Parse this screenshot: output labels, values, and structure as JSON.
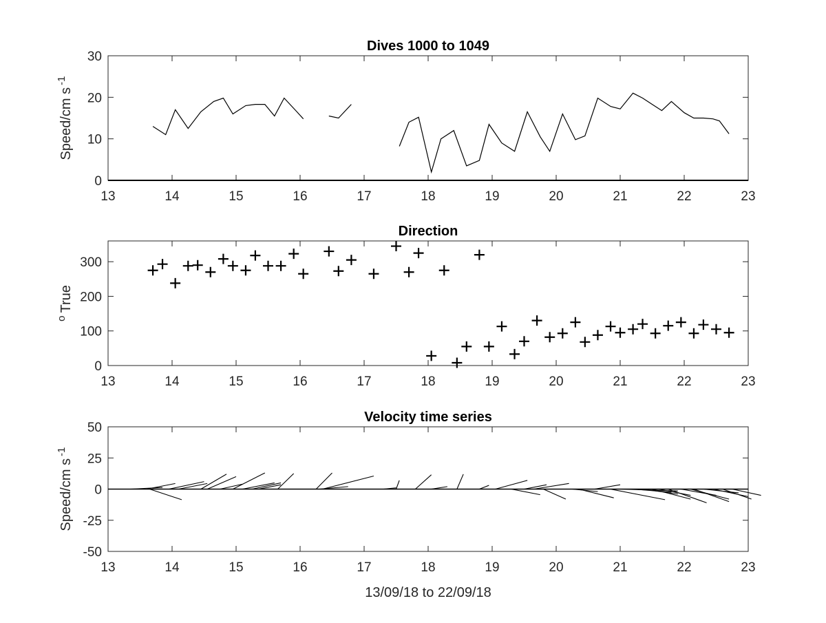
{
  "figure": {
    "background": "#ffffff",
    "axis_color": "#262626",
    "data_color": "#000000"
  },
  "chart_data": [
    {
      "type": "line",
      "title": "Dives 1000 to 1049",
      "xlabel": "",
      "ylabel": "Speed/cm s",
      "ylabel_sup": "-1",
      "xlim": [
        13,
        23
      ],
      "ylim": [
        0,
        30
      ],
      "xticks": [
        13,
        14,
        15,
        16,
        17,
        18,
        19,
        20,
        21,
        22,
        23
      ],
      "yticks": [
        0,
        10,
        20,
        30
      ],
      "grid": false,
      "series": [
        {
          "segments": [
            [
              [
                13.7,
                13
              ],
              [
                13.9,
                11
              ],
              [
                14.05,
                17
              ],
              [
                14.25,
                12.5
              ],
              [
                14.45,
                16.5
              ],
              [
                14.65,
                19
              ],
              [
                14.8,
                19.8
              ],
              [
                14.95,
                16
              ],
              [
                15.15,
                18
              ],
              [
                15.3,
                18.3
              ],
              [
                15.45,
                18.3
              ],
              [
                15.6,
                15.5
              ],
              [
                15.75,
                19.8
              ],
              [
                15.95,
                16.5
              ],
              [
                16.05,
                14.8
              ]
            ],
            [
              [
                16.45,
                15.5
              ],
              [
                16.6,
                15
              ],
              [
                16.8,
                18.3
              ]
            ],
            [
              [
                17.55,
                8.2
              ],
              [
                17.7,
                14
              ],
              [
                17.85,
                15.2
              ],
              [
                18.05,
                2
              ],
              [
                18.2,
                10
              ],
              [
                18.4,
                12
              ],
              [
                18.6,
                3.5
              ],
              [
                18.8,
                4.8
              ],
              [
                18.95,
                13.5
              ],
              [
                19.15,
                9
              ],
              [
                19.35,
                7
              ],
              [
                19.55,
                16.5
              ],
              [
                19.75,
                10.5
              ],
              [
                19.9,
                7
              ],
              [
                20.1,
                16
              ],
              [
                20.3,
                9.8
              ],
              [
                20.45,
                10.7
              ],
              [
                20.65,
                19.8
              ],
              [
                20.85,
                17.8
              ],
              [
                21.0,
                17.2
              ],
              [
                21.2,
                21
              ],
              [
                21.35,
                19.8
              ],
              [
                21.5,
                18.3
              ],
              [
                21.65,
                16.8
              ],
              [
                21.8,
                19
              ],
              [
                22.0,
                16.3
              ],
              [
                22.15,
                15
              ],
              [
                22.3,
                15
              ],
              [
                22.45,
                14.8
              ],
              [
                22.55,
                14.3
              ],
              [
                22.7,
                11.2
              ]
            ]
          ]
        }
      ]
    },
    {
      "type": "scatter",
      "title": "Direction",
      "xlabel": "",
      "ylabel": "True",
      "ylabel_sup": "o",
      "xlim": [
        13,
        23
      ],
      "ylim": [
        0,
        360
      ],
      "xticks": [
        13,
        14,
        15,
        16,
        17,
        18,
        19,
        20,
        21,
        22,
        23
      ],
      "yticks": [
        0,
        100,
        200,
        300
      ],
      "grid": false,
      "marker": "+",
      "x": [
        13.7,
        13.85,
        14.05,
        14.25,
        14.4,
        14.6,
        14.8,
        14.95,
        15.15,
        15.3,
        15.5,
        15.7,
        15.9,
        16.05,
        16.45,
        16.6,
        16.8,
        17.15,
        17.5,
        17.7,
        17.85,
        18.05,
        18.25,
        18.45,
        18.6,
        18.8,
        18.95,
        19.15,
        19.35,
        19.5,
        19.7,
        19.9,
        20.1,
        20.3,
        20.45,
        20.65,
        20.85,
        21.0,
        21.2,
        21.35,
        21.55,
        21.75,
        21.95,
        22.15,
        22.3,
        22.5,
        22.7
      ],
      "y": [
        275,
        293,
        238,
        288,
        290,
        270,
        308,
        288,
        275,
        318,
        288,
        288,
        323,
        265,
        330,
        273,
        305,
        265,
        345,
        270,
        325,
        28,
        275,
        8,
        55,
        320,
        55,
        113,
        33,
        70,
        130,
        82,
        93,
        125,
        68,
        88,
        113,
        95,
        105,
        120,
        93,
        115,
        125,
        93,
        118,
        105,
        95
      ]
    },
    {
      "type": "line",
      "title": "Velocity time series",
      "xlabel": "13/09/18 to 22/09/18",
      "ylabel": "Speed/cm s",
      "ylabel_sup": "-1",
      "xlim": [
        13,
        23
      ],
      "ylim": [
        -50,
        50
      ],
      "xticks": [
        13,
        14,
        15,
        16,
        17,
        18,
        19,
        20,
        21,
        22,
        23
      ],
      "yticks": [
        -50,
        -25,
        0,
        25,
        50
      ],
      "grid": false,
      "baseline_y": 0,
      "stick_vectors": [
        {
          "x": 13.35,
          "dx": 0.5,
          "dy": 1.3
        },
        {
          "x": 13.6,
          "dx": 0.45,
          "dy": 4.5
        },
        {
          "x": 13.65,
          "dx": 0.5,
          "dy": -8.5
        },
        {
          "x": 13.8,
          "dx": 0.5,
          "dy": 0
        },
        {
          "x": 13.95,
          "dx": 0.55,
          "dy": 6
        },
        {
          "x": 14.1,
          "dx": 0.45,
          "dy": 4.5
        },
        {
          "x": 14.45,
          "dx": 0.4,
          "dy": 12
        },
        {
          "x": 14.55,
          "dx": 0.45,
          "dy": 10
        },
        {
          "x": 14.75,
          "dx": 0.35,
          "dy": 4
        },
        {
          "x": 14.95,
          "dx": 0.5,
          "dy": 13
        },
        {
          "x": 15.1,
          "dx": 0.5,
          "dy": 5
        },
        {
          "x": 15.25,
          "dx": 0.45,
          "dy": 5
        },
        {
          "x": 15.35,
          "dx": 0.35,
          "dy": 3.5
        },
        {
          "x": 15.65,
          "dx": 0.25,
          "dy": 12.5
        },
        {
          "x": 16.25,
          "dx": 0.25,
          "dy": 13
        },
        {
          "x": 16.3,
          "dx": 0.45,
          "dy": 2
        },
        {
          "x": 16.35,
          "dx": 0.8,
          "dy": 10.5
        },
        {
          "x": 17.3,
          "dx": 0.2,
          "dy": 1
        },
        {
          "x": 17.5,
          "dx": 0.05,
          "dy": 7
        },
        {
          "x": 17.8,
          "dx": 0.25,
          "dy": 11.5
        },
        {
          "x": 18.05,
          "dx": 0.25,
          "dy": 2
        },
        {
          "x": 18.45,
          "dx": 0.1,
          "dy": 12
        },
        {
          "x": 18.8,
          "dx": 0.15,
          "dy": 3
        },
        {
          "x": 19.05,
          "dx": 0.5,
          "dy": 7
        },
        {
          "x": 19.3,
          "dx": 0.45,
          "dy": -4.5
        },
        {
          "x": 19.5,
          "dx": 0.35,
          "dy": 3.5
        },
        {
          "x": 19.65,
          "dx": 0.55,
          "dy": 4.5
        },
        {
          "x": 19.8,
          "dx": 0.35,
          "dy": -8
        },
        {
          "x": 20.1,
          "dx": 0.45,
          "dy": 0
        },
        {
          "x": 20.25,
          "dx": 0.4,
          "dy": -2
        },
        {
          "x": 20.35,
          "dx": 0.55,
          "dy": -7
        },
        {
          "x": 20.6,
          "dx": 0.4,
          "dy": 3.5
        },
        {
          "x": 20.85,
          "dx": 0.85,
          "dy": -8.5
        },
        {
          "x": 21.0,
          "dx": 0.9,
          "dy": -1.5
        },
        {
          "x": 21.2,
          "dx": 0.6,
          "dy": -2.5
        },
        {
          "x": 21.35,
          "dx": 0.55,
          "dy": -4
        },
        {
          "x": 21.5,
          "dx": 0.6,
          "dy": -8
        },
        {
          "x": 21.6,
          "dx": 0.5,
          "dy": -5
        },
        {
          "x": 21.75,
          "dx": 0.6,
          "dy": -11
        },
        {
          "x": 21.95,
          "dx": 0.55,
          "dy": -5
        },
        {
          "x": 22.1,
          "dx": 0.6,
          "dy": -8
        },
        {
          "x": 22.15,
          "dx": 0.55,
          "dy": -10
        },
        {
          "x": 22.3,
          "dx": 0.55,
          "dy": -3
        },
        {
          "x": 22.45,
          "dx": 0.55,
          "dy": -6
        },
        {
          "x": 22.6,
          "dx": 0.45,
          "dy": -8
        },
        {
          "x": 22.75,
          "dx": 0.45,
          "dy": -5
        }
      ]
    }
  ]
}
